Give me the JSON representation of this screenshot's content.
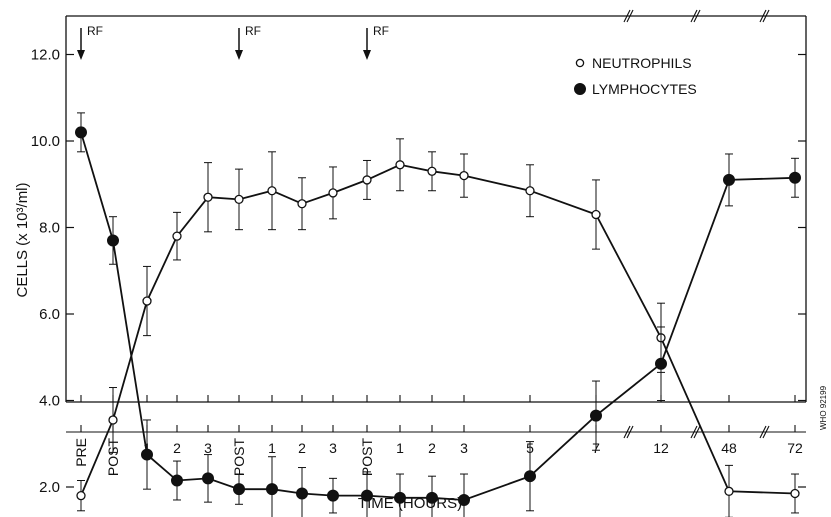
{
  "chart_data": {
    "type": "line",
    "xlabel": "TIME (HOURS)",
    "ylabel": "CELLS (x 10³/ml)",
    "ylim": [
      1.0,
      13.0
    ],
    "yticks": [
      "2.0",
      "4.0",
      "6.0",
      "8.0",
      "10.0",
      "12.0"
    ],
    "categories": [
      "PRE",
      "POST",
      "1",
      "2",
      "3",
      "POST",
      "1",
      "2",
      "3",
      "POST",
      "1",
      "2",
      "3",
      "5",
      "7",
      "12",
      "48",
      "72"
    ],
    "legend_position": "top-right",
    "grid": false,
    "series": [
      {
        "name": "NEUTROPHILS",
        "marker": "open-circle",
        "values": [
          1.8,
          3.55,
          6.3,
          7.8,
          8.7,
          8.65,
          8.85,
          8.55,
          8.8,
          9.1,
          9.45,
          9.3,
          9.2,
          8.85,
          8.3,
          5.45,
          1.9,
          1.85
        ],
        "errors": [
          0.35,
          0.75,
          0.8,
          0.55,
          0.8,
          0.7,
          0.9,
          0.6,
          0.6,
          0.45,
          0.6,
          0.45,
          0.5,
          0.6,
          0.8,
          0.8,
          0.6,
          0.45
        ]
      },
      {
        "name": "LYMPHOCYTES",
        "marker": "filled-circle",
        "values": [
          10.2,
          7.7,
          2.75,
          2.15,
          2.2,
          1.95,
          1.95,
          1.85,
          1.8,
          1.8,
          1.75,
          1.75,
          1.7,
          2.25,
          3.65,
          4.85,
          9.1,
          9.15
        ],
        "errors": [
          0.45,
          0.55,
          0.8,
          0.45,
          0.55,
          0.35,
          0.75,
          0.6,
          0.4,
          0.55,
          0.55,
          0.5,
          0.6,
          0.8,
          0.8,
          0.85,
          0.6,
          0.45
        ]
      }
    ],
    "annotations": [
      {
        "text": "RF",
        "category_index": 0
      },
      {
        "text": "RF",
        "category_index": 5
      },
      {
        "text": "RF",
        "category_index": 9
      }
    ],
    "axis_break_marks": [
      "between 7 and 12",
      "between 12 and 48",
      "between 48 and 72"
    ],
    "watermark": "WHO 92199"
  }
}
